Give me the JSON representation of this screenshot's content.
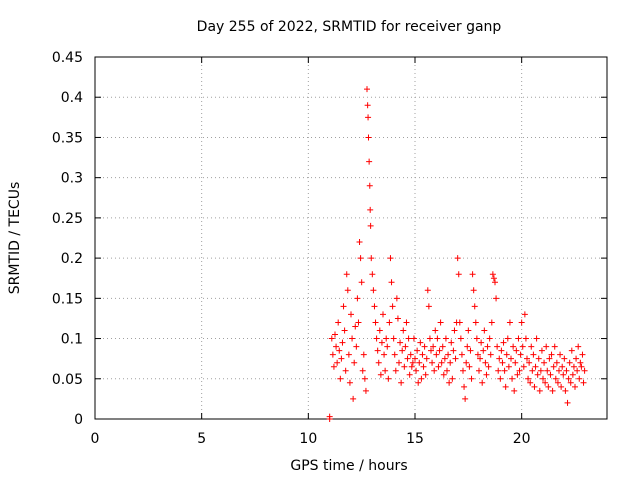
{
  "chart_data": {
    "type": "scatter",
    "title": "Day 255 of 2022, SRMTID for receiver ganp",
    "xlabel": "GPS time / hours",
    "ylabel": "SRMTID / TECUs",
    "xlim": [
      0,
      24
    ],
    "ylim": [
      0,
      0.45
    ],
    "xticks": [
      0,
      5,
      10,
      15,
      20
    ],
    "yticks": [
      0,
      0.05,
      0.1,
      0.15,
      0.2,
      0.25,
      0.3,
      0.35,
      0.4,
      0.45
    ],
    "xtick_labels": [
      "0",
      "5",
      "10",
      "15",
      "20"
    ],
    "ytick_labels": [
      "0",
      "0.05",
      "0.1",
      "0.15",
      "0.2",
      "0.25",
      "0.3",
      "0.35",
      "0.4",
      "0.45"
    ],
    "grid": true,
    "marker": "+",
    "color": "#ff0000",
    "series": [
      {
        "name": "SRMTID",
        "points": [
          [
            11.0,
            0.0
          ],
          [
            11.0,
            0.003
          ],
          [
            11.1,
            0.1
          ],
          [
            11.15,
            0.08
          ],
          [
            11.2,
            0.065
          ],
          [
            11.25,
            0.105
          ],
          [
            11.3,
            0.09
          ],
          [
            11.35,
            0.07
          ],
          [
            11.4,
            0.12
          ],
          [
            11.45,
            0.085
          ],
          [
            11.5,
            0.05
          ],
          [
            11.55,
            0.075
          ],
          [
            11.6,
            0.095
          ],
          [
            11.65,
            0.14
          ],
          [
            11.7,
            0.11
          ],
          [
            11.75,
            0.06
          ],
          [
            11.8,
            0.18
          ],
          [
            11.85,
            0.16
          ],
          [
            11.9,
            0.08
          ],
          [
            11.95,
            0.045
          ],
          [
            12.0,
            0.13
          ],
          [
            12.05,
            0.1
          ],
          [
            12.1,
            0.025
          ],
          [
            12.15,
            0.07
          ],
          [
            12.2,
            0.115
          ],
          [
            12.25,
            0.09
          ],
          [
            12.3,
            0.15
          ],
          [
            12.35,
            0.12
          ],
          [
            12.4,
            0.22
          ],
          [
            12.45,
            0.2
          ],
          [
            12.5,
            0.17
          ],
          [
            12.55,
            0.06
          ],
          [
            12.6,
            0.08
          ],
          [
            12.65,
            0.05
          ],
          [
            12.7,
            0.035
          ],
          [
            12.75,
            0.41
          ],
          [
            12.78,
            0.39
          ],
          [
            12.8,
            0.375
          ],
          [
            12.82,
            0.35
          ],
          [
            12.85,
            0.32
          ],
          [
            12.88,
            0.29
          ],
          [
            12.9,
            0.26
          ],
          [
            12.92,
            0.24
          ],
          [
            12.95,
            0.2
          ],
          [
            13.0,
            0.18
          ],
          [
            13.05,
            0.16
          ],
          [
            13.1,
            0.14
          ],
          [
            13.15,
            0.12
          ],
          [
            13.2,
            0.1
          ],
          [
            13.25,
            0.085
          ],
          [
            13.3,
            0.07
          ],
          [
            13.35,
            0.11
          ],
          [
            13.4,
            0.055
          ],
          [
            13.45,
            0.095
          ],
          [
            13.5,
            0.13
          ],
          [
            13.55,
            0.08
          ],
          [
            13.6,
            0.06
          ],
          [
            13.65,
            0.1
          ],
          [
            13.7,
            0.09
          ],
          [
            13.75,
            0.05
          ],
          [
            13.8,
            0.12
          ],
          [
            13.85,
            0.2
          ],
          [
            13.9,
            0.17
          ],
          [
            13.95,
            0.14
          ],
          [
            14.0,
            0.1
          ],
          [
            14.05,
            0.08
          ],
          [
            14.1,
            0.06
          ],
          [
            14.15,
            0.15
          ],
          [
            14.2,
            0.125
          ],
          [
            14.25,
            0.07
          ],
          [
            14.3,
            0.095
          ],
          [
            14.35,
            0.045
          ],
          [
            14.4,
            0.085
          ],
          [
            14.45,
            0.11
          ],
          [
            14.5,
            0.065
          ],
          [
            14.55,
            0.09
          ],
          [
            14.6,
            0.12
          ],
          [
            14.65,
            0.075
          ],
          [
            14.7,
            0.1
          ],
          [
            14.75,
            0.055
          ],
          [
            14.8,
            0.08
          ],
          [
            14.85,
            0.065
          ],
          [
            14.9,
            0.07
          ],
          [
            14.95,
            0.1
          ],
          [
            15.0,
            0.075
          ],
          [
            15.05,
            0.06
          ],
          [
            15.1,
            0.085
          ],
          [
            15.15,
            0.045
          ],
          [
            15.2,
            0.07
          ],
          [
            15.25,
            0.095
          ],
          [
            15.3,
            0.05
          ],
          [
            15.35,
            0.08
          ],
          [
            15.4,
            0.065
          ],
          [
            15.45,
            0.09
          ],
          [
            15.5,
            0.055
          ],
          [
            15.55,
            0.075
          ],
          [
            15.6,
            0.16
          ],
          [
            15.65,
            0.14
          ],
          [
            15.7,
            0.1
          ],
          [
            15.75,
            0.085
          ],
          [
            15.8,
            0.07
          ],
          [
            15.85,
            0.09
          ],
          [
            15.9,
            0.06
          ],
          [
            15.95,
            0.11
          ],
          [
            16.0,
            0.08
          ],
          [
            16.05,
            0.1
          ],
          [
            16.1,
            0.065
          ],
          [
            16.15,
            0.085
          ],
          [
            16.2,
            0.12
          ],
          [
            16.25,
            0.07
          ],
          [
            16.3,
            0.09
          ],
          [
            16.35,
            0.055
          ],
          [
            16.4,
            0.075
          ],
          [
            16.45,
            0.1
          ],
          [
            16.5,
            0.06
          ],
          [
            16.55,
            0.08
          ],
          [
            16.6,
            0.045
          ],
          [
            16.65,
            0.07
          ],
          [
            16.7,
            0.095
          ],
          [
            16.75,
            0.05
          ],
          [
            16.8,
            0.085
          ],
          [
            16.85,
            0.11
          ],
          [
            16.9,
            0.075
          ],
          [
            16.95,
            0.12
          ],
          [
            17.0,
            0.2
          ],
          [
            17.05,
            0.18
          ],
          [
            17.1,
            0.12
          ],
          [
            17.15,
            0.1
          ],
          [
            17.2,
            0.08
          ],
          [
            17.25,
            0.06
          ],
          [
            17.3,
            0.04
          ],
          [
            17.35,
            0.025
          ],
          [
            17.4,
            0.07
          ],
          [
            17.45,
            0.09
          ],
          [
            17.5,
            0.11
          ],
          [
            17.55,
            0.065
          ],
          [
            17.6,
            0.085
          ],
          [
            17.65,
            0.05
          ],
          [
            17.7,
            0.18
          ],
          [
            17.75,
            0.16
          ],
          [
            17.8,
            0.14
          ],
          [
            17.85,
            0.12
          ],
          [
            17.9,
            0.1
          ],
          [
            17.95,
            0.08
          ],
          [
            18.0,
            0.06
          ],
          [
            18.05,
            0.075
          ],
          [
            18.1,
            0.095
          ],
          [
            18.15,
            0.045
          ],
          [
            18.2,
            0.085
          ],
          [
            18.25,
            0.11
          ],
          [
            18.3,
            0.07
          ],
          [
            18.35,
            0.055
          ],
          [
            18.4,
            0.09
          ],
          [
            18.45,
            0.065
          ],
          [
            18.5,
            0.1
          ],
          [
            18.55,
            0.08
          ],
          [
            18.6,
            0.12
          ],
          [
            18.65,
            0.18
          ],
          [
            18.7,
            0.175
          ],
          [
            18.75,
            0.17
          ],
          [
            18.8,
            0.15
          ],
          [
            18.85,
            0.09
          ],
          [
            18.9,
            0.06
          ],
          [
            18.95,
            0.075
          ],
          [
            19.0,
            0.05
          ],
          [
            19.05,
            0.085
          ],
          [
            19.1,
            0.07
          ],
          [
            19.15,
            0.095
          ],
          [
            19.2,
            0.06
          ],
          [
            19.25,
            0.04
          ],
          [
            19.3,
            0.08
          ],
          [
            19.35,
            0.1
          ],
          [
            19.4,
            0.065
          ],
          [
            19.45,
            0.12
          ],
          [
            19.5,
            0.075
          ],
          [
            19.55,
            0.05
          ],
          [
            19.6,
            0.09
          ],
          [
            19.65,
            0.035
          ],
          [
            19.7,
            0.07
          ],
          [
            19.75,
            0.085
          ],
          [
            19.8,
            0.055
          ],
          [
            19.85,
            0.1
          ],
          [
            19.9,
            0.06
          ],
          [
            19.95,
            0.08
          ],
          [
            20.0,
            0.12
          ],
          [
            20.05,
            0.09
          ],
          [
            20.1,
            0.065
          ],
          [
            20.15,
            0.13
          ],
          [
            20.2,
            0.1
          ],
          [
            20.25,
            0.075
          ],
          [
            20.3,
            0.05
          ],
          [
            20.35,
            0.07
          ],
          [
            20.4,
            0.045
          ],
          [
            20.45,
            0.09
          ],
          [
            20.5,
            0.06
          ],
          [
            20.55,
            0.08
          ],
          [
            20.6,
            0.04
          ],
          [
            20.65,
            0.065
          ],
          [
            20.7,
            0.1
          ],
          [
            20.75,
            0.055
          ],
          [
            20.8,
            0.075
          ],
          [
            20.85,
            0.035
          ],
          [
            20.9,
            0.06
          ],
          [
            20.95,
            0.085
          ],
          [
            21.0,
            0.05
          ],
          [
            21.05,
            0.07
          ],
          [
            21.1,
            0.045
          ],
          [
            21.15,
            0.09
          ],
          [
            21.2,
            0.06
          ],
          [
            21.25,
            0.04
          ],
          [
            21.3,
            0.075
          ],
          [
            21.35,
            0.055
          ],
          [
            21.4,
            0.08
          ],
          [
            21.45,
            0.035
          ],
          [
            21.5,
            0.065
          ],
          [
            21.55,
            0.09
          ],
          [
            21.6,
            0.05
          ],
          [
            21.65,
            0.07
          ],
          [
            21.7,
            0.045
          ],
          [
            21.75,
            0.06
          ],
          [
            21.8,
            0.08
          ],
          [
            21.85,
            0.04
          ],
          [
            21.9,
            0.065
          ],
          [
            21.95,
            0.055
          ],
          [
            22.0,
            0.075
          ],
          [
            22.05,
            0.035
          ],
          [
            22.1,
            0.06
          ],
          [
            22.15,
            0.02
          ],
          [
            22.2,
            0.05
          ],
          [
            22.25,
            0.07
          ],
          [
            22.3,
            0.045
          ],
          [
            22.35,
            0.085
          ],
          [
            22.4,
            0.055
          ],
          [
            22.45,
            0.065
          ],
          [
            22.5,
            0.04
          ],
          [
            22.55,
            0.075
          ],
          [
            22.6,
            0.06
          ],
          [
            22.65,
            0.09
          ],
          [
            22.7,
            0.05
          ],
          [
            22.75,
            0.07
          ],
          [
            22.8,
            0.065
          ],
          [
            22.85,
            0.08
          ],
          [
            22.9,
            0.045
          ],
          [
            22.95,
            0.06
          ]
        ]
      }
    ]
  }
}
